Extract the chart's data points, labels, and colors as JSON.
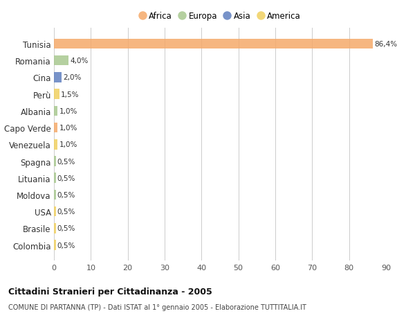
{
  "countries": [
    "Tunisia",
    "Romania",
    "Cina",
    "Perù",
    "Albania",
    "Capo Verde",
    "Venezuela",
    "Spagna",
    "Lituania",
    "Moldova",
    "USA",
    "Brasile",
    "Colombia"
  ],
  "values": [
    86.4,
    4.0,
    2.0,
    1.5,
    1.0,
    1.0,
    1.0,
    0.5,
    0.5,
    0.5,
    0.5,
    0.5,
    0.5
  ],
  "labels": [
    "86,4%",
    "4,0%",
    "2,0%",
    "1,5%",
    "1,0%",
    "1,0%",
    "1,0%",
    "0,5%",
    "0,5%",
    "0,5%",
    "0,5%",
    "0,5%",
    "0,5%"
  ],
  "continents": [
    "Africa",
    "Europa",
    "Asia",
    "America",
    "Europa",
    "Africa",
    "America",
    "Europa",
    "Europa",
    "Europa",
    "America",
    "America",
    "America"
  ],
  "continent_colors": {
    "Africa": "#F5A96A",
    "Europa": "#A8C890",
    "Asia": "#6080C0",
    "America": "#F0D060"
  },
  "legend_order": [
    "Africa",
    "Europa",
    "Asia",
    "America"
  ],
  "legend_colors": [
    "#F5A96A",
    "#A8C890",
    "#6080C0",
    "#F0D060"
  ],
  "xlim": [
    0,
    90
  ],
  "xticks": [
    0,
    10,
    20,
    30,
    40,
    50,
    60,
    70,
    80,
    90
  ],
  "title": "Cittadini Stranieri per Cittadinanza - 2005",
  "subtitle": "COMUNE DI PARTANNA (TP) - Dati ISTAT al 1° gennaio 2005 - Elaborazione TUTTITALIA.IT",
  "background_color": "#ffffff",
  "bar_height": 0.6
}
